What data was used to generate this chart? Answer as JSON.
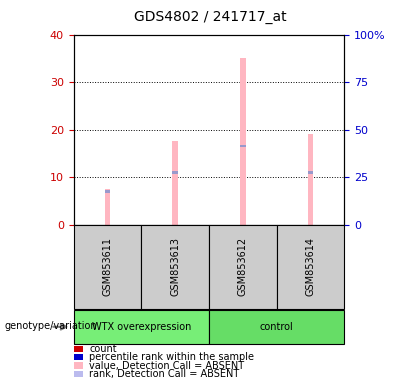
{
  "title": "GDS4802 / 241717_at",
  "samples": [
    "GSM853611",
    "GSM853613",
    "GSM853612",
    "GSM853614"
  ],
  "pink_bars": [
    7.5,
    17.5,
    35.0,
    19.0
  ],
  "blue_markers": [
    7.0,
    11.0,
    16.5,
    11.0
  ],
  "ylim": [
    0,
    40
  ],
  "yticks_left": [
    0,
    10,
    20,
    30,
    40
  ],
  "yticks_right_labels": [
    "0",
    "25",
    "50",
    "75",
    "100%"
  ],
  "yticks_right_vals": [
    0,
    10,
    20,
    30,
    40
  ],
  "groups": [
    {
      "label": "WTX overexpression",
      "samples": [
        0,
        1
      ],
      "color": "#77EE77"
    },
    {
      "label": "control",
      "samples": [
        2,
        3
      ],
      "color": "#66DD66"
    }
  ],
  "group_row_label": "genotype/variation",
  "pink_color": "#FFB6C1",
  "blue_color": "#9999CC",
  "bg_color": "#CCCCCC",
  "left_tick_color": "#CC0000",
  "right_tick_color": "#0000CC",
  "legend_items": [
    {
      "color": "#CC0000",
      "label": "count"
    },
    {
      "color": "#0000CC",
      "label": "percentile rank within the sample"
    },
    {
      "color": "#FFB6C1",
      "label": "value, Detection Call = ABSENT"
    },
    {
      "color": "#BBBBEE",
      "label": "rank, Detection Call = ABSENT"
    }
  ]
}
